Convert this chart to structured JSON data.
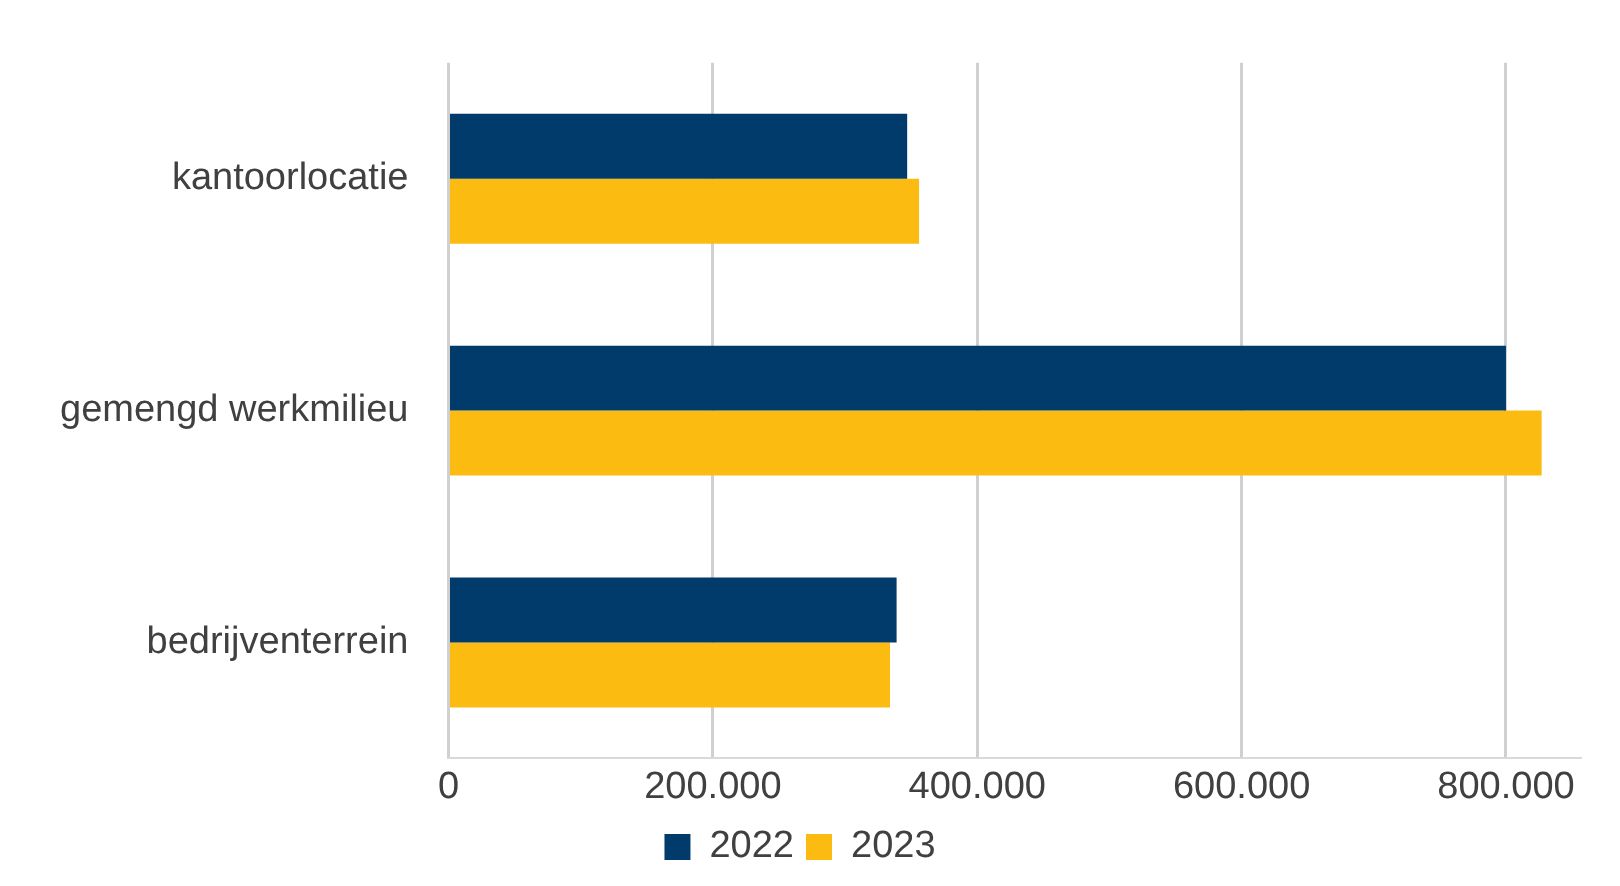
{
  "chart_data": {
    "type": "bar",
    "orientation": "horizontal",
    "categories": [
      "kantoorlocatie",
      "gemengd werkmilieu",
      "bedrijventerrein"
    ],
    "series": [
      {
        "name": "2022",
        "color": "#003b6b",
        "values": [
          347000,
          800000,
          339000
        ]
      },
      {
        "name": "2023",
        "color": "#fbbb10",
        "values": [
          356000,
          827000,
          334000
        ]
      }
    ],
    "xlim": [
      0,
      856000
    ],
    "xticks": [
      0,
      {
        "value": 200000,
        "label": "200.000"
      },
      {
        "value": 400000,
        "label": "400.000"
      },
      {
        "value": 600000,
        "label": "600.000"
      },
      {
        "value": 800000,
        "label": "800.000"
      }
    ],
    "grid": "x",
    "legend": "bottom"
  }
}
